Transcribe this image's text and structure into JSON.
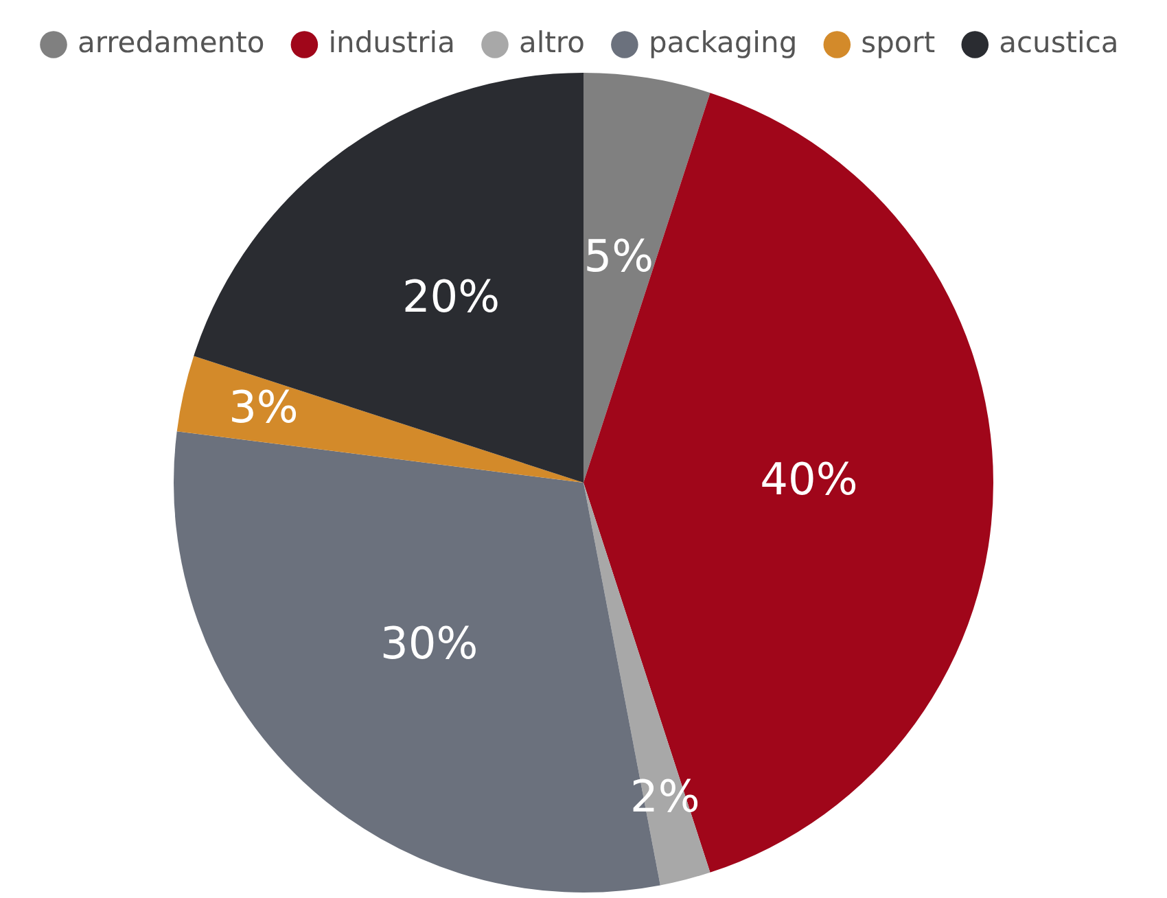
{
  "chart_data": {
    "type": "pie",
    "categories": [
      "arredamento",
      "industria",
      "altro",
      "packaging",
      "sport",
      "acustica"
    ],
    "values": [
      5,
      40,
      2,
      30,
      3,
      20
    ],
    "colors": [
      "#808080",
      "#a0061a",
      "#a8a8a8",
      "#6b717d",
      "#d38a2a",
      "#2a2c31"
    ],
    "value_labels": [
      "5%",
      "40%",
      "2%",
      "30%",
      "3%",
      "20%"
    ],
    "legend": "top"
  }
}
